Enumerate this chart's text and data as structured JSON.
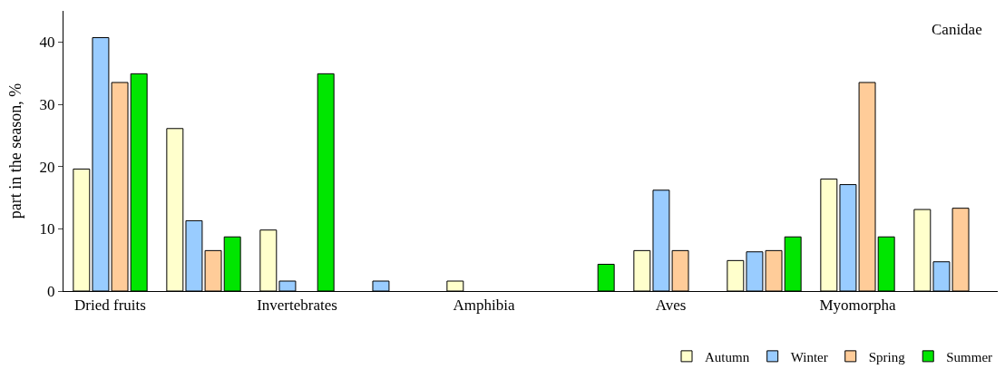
{
  "chart_data": {
    "type": "bar",
    "ylabel": "part in the season, %",
    "categories": [
      "Dried fruits",
      null,
      "Invertebrates",
      null,
      "Amphibia",
      null,
      "Aves",
      null,
      "Myomorpha",
      null
    ],
    "series": [
      {
        "name": "Autumn",
        "color": "#ffffcc",
        "values": [
          19.6,
          26.1,
          9.8,
          null,
          1.6,
          null,
          6.5,
          4.9,
          18,
          13.1
        ]
      },
      {
        "name": "Winter",
        "color": "#99ccff",
        "values": [
          40.7,
          11.3,
          1.6,
          1.6,
          null,
          null,
          16.2,
          6.3,
          17.1,
          4.7
        ]
      },
      {
        "name": "Spring",
        "color": "#ffcc99",
        "values": [
          33.5,
          6.5,
          null,
          null,
          null,
          null,
          6.5,
          6.5,
          33.5,
          13.3
        ]
      },
      {
        "name": "Summer",
        "color": "#00e600",
        "values": [
          34.9,
          8.7,
          34.9,
          null,
          null,
          4.3,
          null,
          8.7,
          8.7,
          null
        ]
      }
    ],
    "annotations": [
      "Canidae"
    ],
    "ylim": [
      0,
      45
    ],
    "yticks": [
      0,
      10,
      20,
      30,
      40
    ],
    "legend": "bottom right"
  }
}
